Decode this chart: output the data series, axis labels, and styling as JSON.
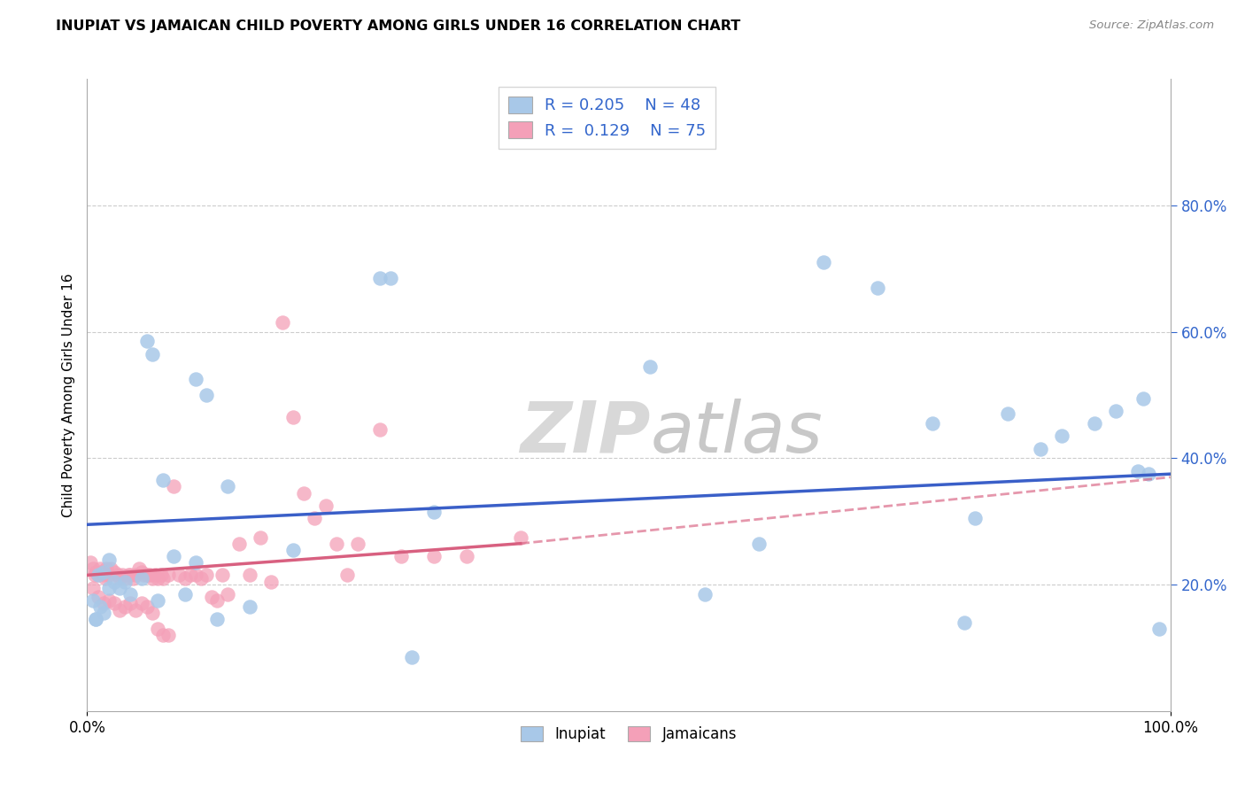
{
  "title": "INUPIAT VS JAMAICAN CHILD POVERTY AMONG GIRLS UNDER 16 CORRELATION CHART",
  "source": "Source: ZipAtlas.com",
  "ylabel": "Child Poverty Among Girls Under 16",
  "xlim": [
    0,
    1
  ],
  "ylim": [
    0,
    1
  ],
  "xticks": [
    0.0,
    0.2,
    0.4,
    0.6,
    0.8,
    1.0
  ],
  "xticklabels": [
    "0.0%",
    "",
    "",
    "",
    "",
    "100.0%"
  ],
  "ytick_vals": [
    0.2,
    0.4,
    0.6,
    0.8
  ],
  "yticklabels_right": [
    "20.0%",
    "40.0%",
    "60.0%",
    "80.0%"
  ],
  "inupiat_R": 0.205,
  "inupiat_N": 48,
  "jamaican_R": 0.129,
  "jamaican_N": 75,
  "inupiat_color": "#a8c8e8",
  "jamaican_color": "#f4a0b8",
  "inupiat_line_color": "#3a5fc8",
  "jamaican_line_color": "#d86080",
  "background_color": "#ffffff",
  "grid_color": "#cccccc",
  "inupiat_x": [
    0.005,
    0.008,
    0.01,
    0.012,
    0.015,
    0.015,
    0.02,
    0.02,
    0.025,
    0.03,
    0.035,
    0.04,
    0.05,
    0.055,
    0.06,
    0.065,
    0.07,
    0.08,
    0.09,
    0.1,
    0.11,
    0.13,
    0.15,
    0.19,
    0.27,
    0.28,
    0.32,
    0.52,
    0.57,
    0.62,
    0.68,
    0.73,
    0.78,
    0.82,
    0.85,
    0.88,
    0.9,
    0.93,
    0.95,
    0.97,
    0.975,
    0.98,
    0.99,
    0.008,
    0.1,
    0.3,
    0.81,
    0.12
  ],
  "inupiat_y": [
    0.175,
    0.145,
    0.215,
    0.165,
    0.155,
    0.22,
    0.24,
    0.195,
    0.205,
    0.195,
    0.205,
    0.185,
    0.21,
    0.585,
    0.565,
    0.175,
    0.365,
    0.245,
    0.185,
    0.525,
    0.5,
    0.355,
    0.165,
    0.255,
    0.685,
    0.685,
    0.315,
    0.545,
    0.185,
    0.265,
    0.71,
    0.67,
    0.455,
    0.305,
    0.47,
    0.415,
    0.435,
    0.455,
    0.475,
    0.38,
    0.495,
    0.375,
    0.13,
    0.145,
    0.235,
    0.085,
    0.14,
    0.145
  ],
  "jamaican_x": [
    0.003,
    0.005,
    0.007,
    0.008,
    0.01,
    0.012,
    0.013,
    0.015,
    0.017,
    0.018,
    0.02,
    0.022,
    0.025,
    0.028,
    0.03,
    0.032,
    0.035,
    0.038,
    0.04,
    0.042,
    0.045,
    0.048,
    0.05,
    0.052,
    0.055,
    0.058,
    0.06,
    0.063,
    0.065,
    0.068,
    0.07,
    0.075,
    0.08,
    0.085,
    0.09,
    0.095,
    0.1,
    0.105,
    0.11,
    0.115,
    0.12,
    0.125,
    0.13,
    0.14,
    0.15,
    0.16,
    0.17,
    0.18,
    0.19,
    0.2,
    0.21,
    0.22,
    0.23,
    0.24,
    0.25,
    0.27,
    0.29,
    0.32,
    0.35,
    0.4,
    0.005,
    0.01,
    0.015,
    0.02,
    0.025,
    0.03,
    0.035,
    0.04,
    0.045,
    0.05,
    0.055,
    0.06,
    0.065,
    0.07,
    0.075
  ],
  "jamaican_y": [
    0.235,
    0.225,
    0.215,
    0.22,
    0.215,
    0.225,
    0.22,
    0.215,
    0.21,
    0.225,
    0.215,
    0.225,
    0.22,
    0.215,
    0.21,
    0.215,
    0.21,
    0.215,
    0.215,
    0.21,
    0.215,
    0.225,
    0.22,
    0.215,
    0.215,
    0.215,
    0.21,
    0.215,
    0.21,
    0.215,
    0.21,
    0.215,
    0.355,
    0.215,
    0.21,
    0.215,
    0.215,
    0.21,
    0.215,
    0.18,
    0.175,
    0.215,
    0.185,
    0.265,
    0.215,
    0.275,
    0.205,
    0.615,
    0.465,
    0.345,
    0.305,
    0.325,
    0.265,
    0.215,
    0.265,
    0.445,
    0.245,
    0.245,
    0.245,
    0.275,
    0.195,
    0.18,
    0.17,
    0.175,
    0.17,
    0.16,
    0.165,
    0.17,
    0.16,
    0.17,
    0.165,
    0.155,
    0.13,
    0.12,
    0.12
  ]
}
